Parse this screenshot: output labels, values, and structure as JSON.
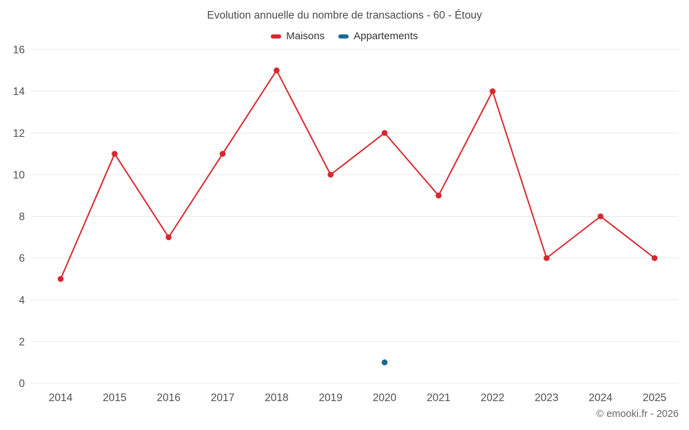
{
  "header": {
    "title": "Evolution annuelle du nombre de transactions - 60 - Étouy"
  },
  "legend": [
    {
      "label": "Maisons",
      "color": "#d7282e"
    },
    {
      "label": "Appartements",
      "color": "#176a94"
    }
  ],
  "footer": {
    "credit": "© emooki.fr - 2026"
  },
  "chart_data": {
    "type": "line",
    "title": "Evolution annuelle du nombre de transactions - 60 - Étouy",
    "categories": [
      "2014",
      "2015",
      "2016",
      "2017",
      "2018",
      "2019",
      "2020",
      "2021",
      "2022",
      "2023",
      "2024",
      "2025"
    ],
    "series": [
      {
        "name": "Maisons",
        "color": "#d7282e",
        "values": [
          5,
          11,
          7,
          11,
          15,
          10,
          12,
          9,
          14,
          6,
          8,
          6
        ]
      },
      {
        "name": "Appartements",
        "color": "#176a94",
        "values": [
          null,
          null,
          null,
          null,
          null,
          null,
          1,
          null,
          null,
          null,
          null,
          null
        ]
      }
    ],
    "xlabel": "",
    "ylabel": "",
    "ylim": [
      0,
      16
    ],
    "ytick_step": 2,
    "grid": true,
    "legend_position": "top",
    "grid_color": "#e9e9e9",
    "tick_label_color": "#4f4f4f"
  }
}
